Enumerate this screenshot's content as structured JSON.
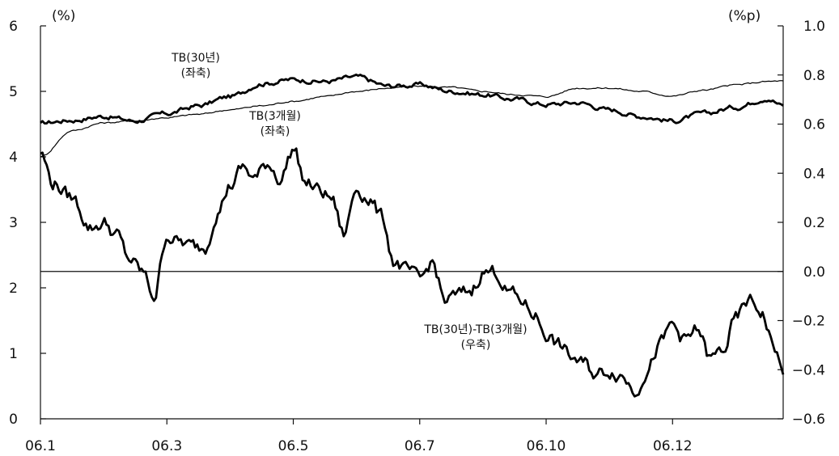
{
  "chart_data": {
    "type": "line",
    "title": "",
    "xlabel": "",
    "ylabel_left": "(%)",
    "ylabel_right": "(%p)",
    "x_tick_labels": [
      "06.1",
      "06.3",
      "06.5",
      "06.7",
      "06.10",
      "06.12"
    ],
    "x_tick_months": [
      1,
      3,
      5,
      7,
      9,
      11
    ],
    "x_range": [
      1,
      12.75
    ],
    "ylim_left": [
      0,
      6
    ],
    "yticks_left": [
      "0",
      "1",
      "2",
      "3",
      "4",
      "5",
      "6"
    ],
    "ylim_right": [
      -0.6,
      1.0
    ],
    "yticks_right": [
      "-0.6",
      "-0.4",
      "-0.2",
      "0.0",
      "0.2",
      "0.4",
      "0.6",
      "0.8",
      "1.0"
    ],
    "grid": false,
    "legend": "none",
    "series": [
      {
        "name": "TB(30년)\n(좌축)",
        "axis": "left",
        "x": [
          1.0,
          1.5,
          2.0,
          2.5,
          3.0,
          3.5,
          4.0,
          4.5,
          5.0,
          5.5,
          6.0,
          6.5,
          7.0,
          7.5,
          8.0,
          8.5,
          9.0,
          9.5,
          10.0,
          10.5,
          11.0,
          11.5,
          12.0,
          12.5,
          12.75
        ],
        "values": [
          4.52,
          4.56,
          4.62,
          4.55,
          4.66,
          4.78,
          4.92,
          5.12,
          5.18,
          5.15,
          5.22,
          5.08,
          5.1,
          5.0,
          4.95,
          4.88,
          4.8,
          4.83,
          4.72,
          4.62,
          4.55,
          4.66,
          4.76,
          4.9,
          4.78
        ]
      },
      {
        "name": "TB(3개월)\n(좌축)",
        "axis": "left",
        "x": [
          1.0,
          1.5,
          2.0,
          2.5,
          3.0,
          3.5,
          4.0,
          4.5,
          5.0,
          5.5,
          6.0,
          6.5,
          7.0,
          7.5,
          8.0,
          8.5,
          9.0,
          9.5,
          10.0,
          10.5,
          11.0,
          11.5,
          12.0,
          12.5,
          12.75
        ],
        "values": [
          4.0,
          4.4,
          4.52,
          4.55,
          4.6,
          4.65,
          4.72,
          4.78,
          4.85,
          4.92,
          5.0,
          5.05,
          5.08,
          5.06,
          5.0,
          4.95,
          4.92,
          5.05,
          5.05,
          5.0,
          4.93,
          5.02,
          5.1,
          5.15,
          5.16
        ]
      },
      {
        "name": "TB(30년)-TB(3개월)\n(우축)",
        "axis": "right",
        "x": [
          1.0,
          1.2,
          1.5,
          1.8,
          2.0,
          2.2,
          2.4,
          2.6,
          2.8,
          3.0,
          3.2,
          3.4,
          3.6,
          3.8,
          4.0,
          4.2,
          4.4,
          4.6,
          4.8,
          5.0,
          5.2,
          5.4,
          5.6,
          5.8,
          6.0,
          6.2,
          6.4,
          6.6,
          6.8,
          7.0,
          7.2,
          7.4,
          7.6,
          7.8,
          8.0,
          8.2,
          8.4,
          8.6,
          8.8,
          9.0,
          9.2,
          9.4,
          9.6,
          9.8,
          10.0,
          10.2,
          10.4,
          10.6,
          10.8,
          11.0,
          11.2,
          11.4,
          11.6,
          11.8,
          12.0,
          12.2,
          12.4,
          12.6,
          12.75
        ],
        "values": [
          0.48,
          0.36,
          0.3,
          0.18,
          0.2,
          0.15,
          0.05,
          0.0,
          -0.1,
          0.15,
          0.12,
          0.1,
          0.1,
          0.25,
          0.35,
          0.42,
          0.38,
          0.44,
          0.38,
          0.5,
          0.36,
          0.33,
          0.3,
          0.15,
          0.34,
          0.3,
          0.22,
          0.04,
          -0.0,
          -0.04,
          0.04,
          -0.12,
          -0.1,
          -0.08,
          -0.0,
          0.0,
          -0.08,
          -0.12,
          -0.17,
          -0.25,
          -0.3,
          -0.35,
          -0.38,
          -0.42,
          -0.4,
          -0.42,
          -0.48,
          -0.4,
          -0.3,
          -0.22,
          -0.28,
          -0.24,
          -0.36,
          -0.32,
          -0.2,
          -0.12,
          -0.16,
          -0.3,
          -0.42
        ]
      }
    ],
    "reference_line": {
      "axis": "right",
      "value": 0.0
    },
    "annotations": [
      {
        "series": 0,
        "lines": [
          "TB(30년)",
          "(좌축)"
        ]
      },
      {
        "series": 1,
        "lines": [
          "TB(3개월)",
          "(좌축)"
        ]
      },
      {
        "series": 2,
        "lines": [
          "TB(30년)-TB(3개월)",
          "(우축)"
        ]
      }
    ]
  }
}
